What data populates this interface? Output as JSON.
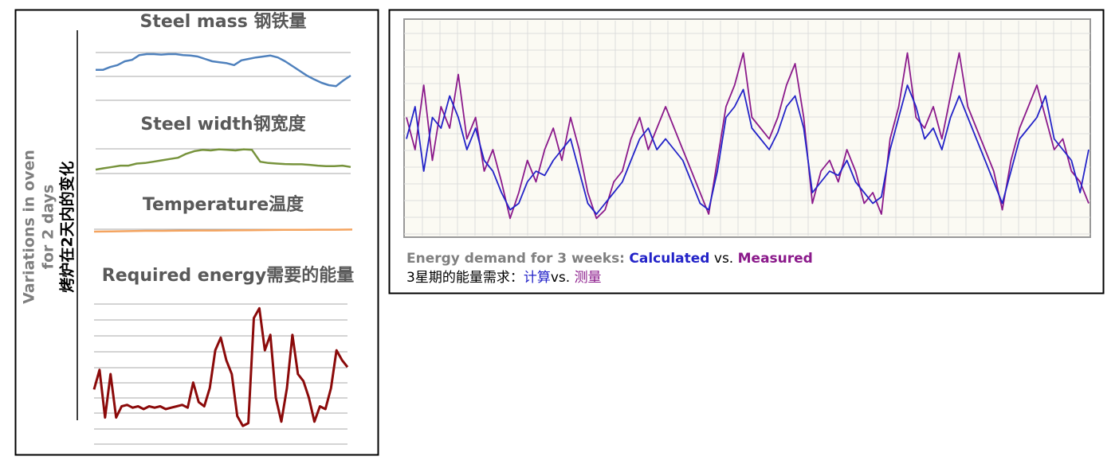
{
  "left_panel": {
    "label_lines": [
      "Variations in oven",
      "for 2 days"
    ],
    "label_zh": "烤炉在2天内的变化"
  },
  "chart_data": [
    {
      "type": "line",
      "title": "Steel mass 钢铁量",
      "color": "#4f81bd",
      "ylim": [
        0,
        100
      ],
      "values": [
        62,
        62,
        68,
        72,
        80,
        83,
        93,
        95,
        95,
        94,
        95,
        95,
        93,
        92,
        90,
        85,
        80,
        78,
        76,
        72,
        82,
        85,
        88,
        90,
        92,
        88,
        80,
        70,
        60,
        50,
        42,
        35,
        30,
        28,
        40,
        50
      ]
    },
    {
      "type": "line",
      "title": "Steel width钢宽度",
      "color": "#77933c",
      "ylim": [
        0,
        100
      ],
      "values": [
        15,
        20,
        25,
        30,
        30,
        38,
        40,
        45,
        50,
        55,
        60,
        75,
        85,
        90,
        88,
        92,
        90,
        88,
        92,
        90,
        45,
        40,
        38,
        36,
        35,
        35,
        33,
        30,
        28,
        28,
        30,
        25
      ]
    },
    {
      "type": "line",
      "title": "Temperature温度",
      "color": "#f4a460",
      "ylim": [
        0,
        100
      ],
      "values": [
        45,
        46,
        48,
        50,
        50,
        51,
        52,
        52,
        53,
        54,
        55,
        56,
        56,
        57,
        57,
        58
      ]
    },
    {
      "type": "line",
      "title": "Required energy需要的能量",
      "color": "#8b0a0a",
      "ylim": [
        0,
        100
      ],
      "values": [
        39,
        53,
        19,
        50,
        19,
        27,
        28,
        26,
        27,
        25,
        27,
        26,
        27,
        25,
        26,
        27,
        28,
        26,
        44,
        30,
        27,
        40,
        67,
        76,
        60,
        50,
        20,
        13,
        15,
        90,
        97,
        67,
        78,
        33,
        16,
        40,
        78,
        50,
        45,
        33,
        16,
        27,
        25,
        40,
        67,
        60,
        55
      ]
    },
    {
      "type": "line",
      "title": "Energy demand for 3 weeks:",
      "vs": "vs.",
      "subtitle": "3星期的能量需求：",
      "series_zh": [
        "计算",
        "测量"
      ],
      "ylim": [
        0,
        100
      ],
      "grid": true,
      "series": [
        {
          "name": "Calculated",
          "color": "#2323c8",
          "values": [
            45,
            60,
            30,
            55,
            50,
            65,
            55,
            40,
            50,
            35,
            30,
            20,
            12,
            15,
            25,
            30,
            28,
            35,
            40,
            45,
            30,
            15,
            10,
            15,
            20,
            25,
            35,
            45,
            50,
            40,
            45,
            40,
            35,
            25,
            15,
            12,
            30,
            55,
            60,
            68,
            50,
            45,
            40,
            48,
            60,
            65,
            50,
            20,
            25,
            30,
            28,
            35,
            25,
            20,
            15,
            18,
            40,
            55,
            70,
            60,
            45,
            50,
            40,
            55,
            65,
            55,
            45,
            35,
            25,
            15,
            30,
            45,
            50,
            55,
            65,
            45,
            40,
            35,
            20,
            40
          ]
        },
        {
          "name": "Measured",
          "color": "#8b1a8b",
          "values": [
            55,
            40,
            70,
            35,
            60,
            50,
            75,
            45,
            55,
            30,
            40,
            25,
            8,
            20,
            35,
            25,
            40,
            50,
            35,
            55,
            40,
            20,
            8,
            12,
            25,
            30,
            45,
            55,
            40,
            50,
            60,
            50,
            40,
            30,
            20,
            10,
            35,
            60,
            70,
            85,
            55,
            50,
            45,
            55,
            70,
            80,
            55,
            15,
            30,
            35,
            25,
            40,
            30,
            15,
            20,
            10,
            45,
            60,
            85,
            55,
            50,
            60,
            45,
            65,
            85,
            60,
            50,
            40,
            30,
            12,
            35,
            50,
            60,
            70,
            55,
            40,
            45,
            30,
            25,
            15
          ]
        }
      ]
    }
  ]
}
